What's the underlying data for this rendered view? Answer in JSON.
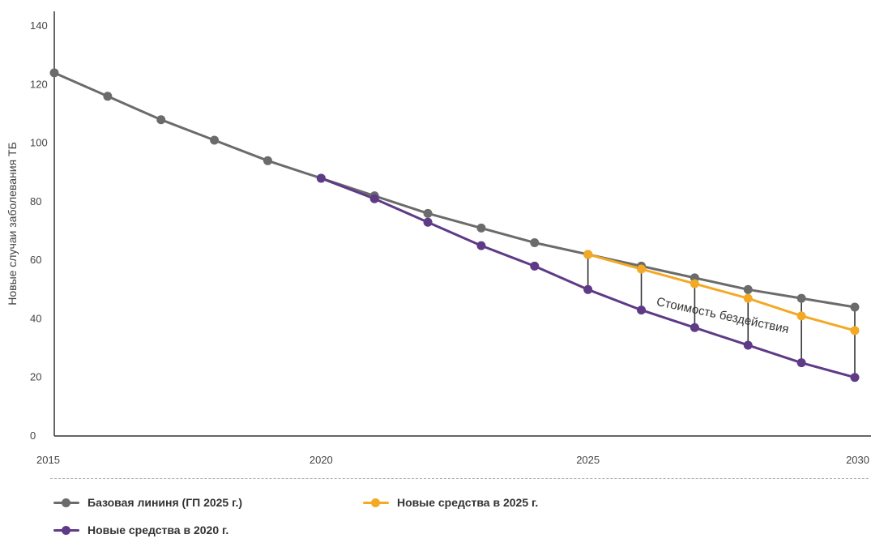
{
  "chart_data": {
    "type": "line",
    "ylabel": "Новые случаи заболевания ТБ",
    "xlabel": "",
    "xlim": [
      2015,
      2030
    ],
    "ylim": [
      0,
      145
    ],
    "x_ticks": [
      2015,
      2020,
      2025,
      2030
    ],
    "y_ticks": [
      0,
      20,
      40,
      60,
      80,
      100,
      120,
      140
    ],
    "series": [
      {
        "name": "Базовая лининя (ГП 2025 г.)",
        "color": "#6b6b6b",
        "x": [
          2015,
          2016,
          2017,
          2018,
          2019,
          2020,
          2021,
          2022,
          2023,
          2024,
          2025,
          2026,
          2027,
          2028,
          2029,
          2030
        ],
        "values": [
          124,
          116,
          108,
          101,
          94,
          88,
          82,
          76,
          71,
          66,
          62,
          58,
          54,
          50,
          47,
          44
        ]
      },
      {
        "name": "Новые средства в 2020 г.",
        "color": "#5e3a87",
        "x": [
          2020,
          2021,
          2022,
          2023,
          2024,
          2025,
          2026,
          2027,
          2028,
          2029,
          2030
        ],
        "values": [
          88,
          81,
          73,
          65,
          58,
          50,
          43,
          37,
          31,
          25,
          20
        ]
      },
      {
        "name": "Новые средства в 2025 г.",
        "color": "#f4a924",
        "x": [
          2025,
          2026,
          2027,
          2028,
          2029,
          2030
        ],
        "values": [
          62,
          57,
          52,
          47,
          41,
          36
        ]
      }
    ],
    "annotation": {
      "text": "Стоимость бездействия"
    },
    "grid": false
  },
  "legend": {
    "baseline": "Базовая лининя (ГП 2025 г.)",
    "new2025": "Новые средства в 2025 г.",
    "new2020": "Новые средства в 2020 г."
  }
}
